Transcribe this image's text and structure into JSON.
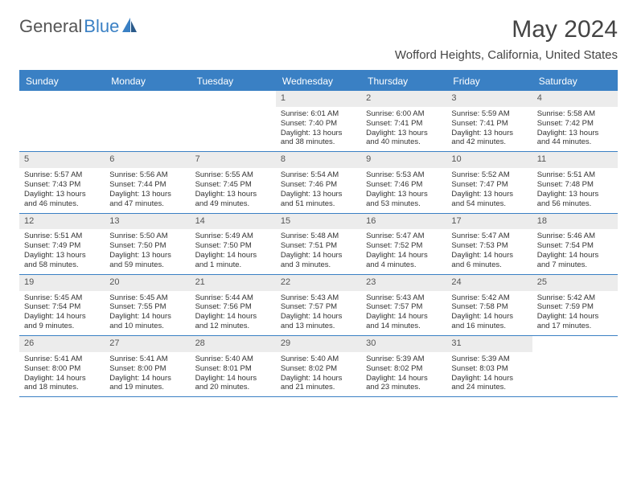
{
  "logo": {
    "text1": "General",
    "text2": "Blue"
  },
  "title": "May 2024",
  "location": "Wofford Heights, California, United States",
  "colors": {
    "accent": "#3a80c4",
    "header_bg": "#ececec",
    "text": "#333333",
    "logo_gray": "#555555"
  },
  "day_names": [
    "Sunday",
    "Monday",
    "Tuesday",
    "Wednesday",
    "Thursday",
    "Friday",
    "Saturday"
  ],
  "weeks": [
    [
      {
        "n": "",
        "sr": "",
        "ss": "",
        "dl": ""
      },
      {
        "n": "",
        "sr": "",
        "ss": "",
        "dl": ""
      },
      {
        "n": "",
        "sr": "",
        "ss": "",
        "dl": ""
      },
      {
        "n": "1",
        "sr": "Sunrise: 6:01 AM",
        "ss": "Sunset: 7:40 PM",
        "dl": "Daylight: 13 hours and 38 minutes."
      },
      {
        "n": "2",
        "sr": "Sunrise: 6:00 AM",
        "ss": "Sunset: 7:41 PM",
        "dl": "Daylight: 13 hours and 40 minutes."
      },
      {
        "n": "3",
        "sr": "Sunrise: 5:59 AM",
        "ss": "Sunset: 7:41 PM",
        "dl": "Daylight: 13 hours and 42 minutes."
      },
      {
        "n": "4",
        "sr": "Sunrise: 5:58 AM",
        "ss": "Sunset: 7:42 PM",
        "dl": "Daylight: 13 hours and 44 minutes."
      }
    ],
    [
      {
        "n": "5",
        "sr": "Sunrise: 5:57 AM",
        "ss": "Sunset: 7:43 PM",
        "dl": "Daylight: 13 hours and 46 minutes."
      },
      {
        "n": "6",
        "sr": "Sunrise: 5:56 AM",
        "ss": "Sunset: 7:44 PM",
        "dl": "Daylight: 13 hours and 47 minutes."
      },
      {
        "n": "7",
        "sr": "Sunrise: 5:55 AM",
        "ss": "Sunset: 7:45 PM",
        "dl": "Daylight: 13 hours and 49 minutes."
      },
      {
        "n": "8",
        "sr": "Sunrise: 5:54 AM",
        "ss": "Sunset: 7:46 PM",
        "dl": "Daylight: 13 hours and 51 minutes."
      },
      {
        "n": "9",
        "sr": "Sunrise: 5:53 AM",
        "ss": "Sunset: 7:46 PM",
        "dl": "Daylight: 13 hours and 53 minutes."
      },
      {
        "n": "10",
        "sr": "Sunrise: 5:52 AM",
        "ss": "Sunset: 7:47 PM",
        "dl": "Daylight: 13 hours and 54 minutes."
      },
      {
        "n": "11",
        "sr": "Sunrise: 5:51 AM",
        "ss": "Sunset: 7:48 PM",
        "dl": "Daylight: 13 hours and 56 minutes."
      }
    ],
    [
      {
        "n": "12",
        "sr": "Sunrise: 5:51 AM",
        "ss": "Sunset: 7:49 PM",
        "dl": "Daylight: 13 hours and 58 minutes."
      },
      {
        "n": "13",
        "sr": "Sunrise: 5:50 AM",
        "ss": "Sunset: 7:50 PM",
        "dl": "Daylight: 13 hours and 59 minutes."
      },
      {
        "n": "14",
        "sr": "Sunrise: 5:49 AM",
        "ss": "Sunset: 7:50 PM",
        "dl": "Daylight: 14 hours and 1 minute."
      },
      {
        "n": "15",
        "sr": "Sunrise: 5:48 AM",
        "ss": "Sunset: 7:51 PM",
        "dl": "Daylight: 14 hours and 3 minutes."
      },
      {
        "n": "16",
        "sr": "Sunrise: 5:47 AM",
        "ss": "Sunset: 7:52 PM",
        "dl": "Daylight: 14 hours and 4 minutes."
      },
      {
        "n": "17",
        "sr": "Sunrise: 5:47 AM",
        "ss": "Sunset: 7:53 PM",
        "dl": "Daylight: 14 hours and 6 minutes."
      },
      {
        "n": "18",
        "sr": "Sunrise: 5:46 AM",
        "ss": "Sunset: 7:54 PM",
        "dl": "Daylight: 14 hours and 7 minutes."
      }
    ],
    [
      {
        "n": "19",
        "sr": "Sunrise: 5:45 AM",
        "ss": "Sunset: 7:54 PM",
        "dl": "Daylight: 14 hours and 9 minutes."
      },
      {
        "n": "20",
        "sr": "Sunrise: 5:45 AM",
        "ss": "Sunset: 7:55 PM",
        "dl": "Daylight: 14 hours and 10 minutes."
      },
      {
        "n": "21",
        "sr": "Sunrise: 5:44 AM",
        "ss": "Sunset: 7:56 PM",
        "dl": "Daylight: 14 hours and 12 minutes."
      },
      {
        "n": "22",
        "sr": "Sunrise: 5:43 AM",
        "ss": "Sunset: 7:57 PM",
        "dl": "Daylight: 14 hours and 13 minutes."
      },
      {
        "n": "23",
        "sr": "Sunrise: 5:43 AM",
        "ss": "Sunset: 7:57 PM",
        "dl": "Daylight: 14 hours and 14 minutes."
      },
      {
        "n": "24",
        "sr": "Sunrise: 5:42 AM",
        "ss": "Sunset: 7:58 PM",
        "dl": "Daylight: 14 hours and 16 minutes."
      },
      {
        "n": "25",
        "sr": "Sunrise: 5:42 AM",
        "ss": "Sunset: 7:59 PM",
        "dl": "Daylight: 14 hours and 17 minutes."
      }
    ],
    [
      {
        "n": "26",
        "sr": "Sunrise: 5:41 AM",
        "ss": "Sunset: 8:00 PM",
        "dl": "Daylight: 14 hours and 18 minutes."
      },
      {
        "n": "27",
        "sr": "Sunrise: 5:41 AM",
        "ss": "Sunset: 8:00 PM",
        "dl": "Daylight: 14 hours and 19 minutes."
      },
      {
        "n": "28",
        "sr": "Sunrise: 5:40 AM",
        "ss": "Sunset: 8:01 PM",
        "dl": "Daylight: 14 hours and 20 minutes."
      },
      {
        "n": "29",
        "sr": "Sunrise: 5:40 AM",
        "ss": "Sunset: 8:02 PM",
        "dl": "Daylight: 14 hours and 21 minutes."
      },
      {
        "n": "30",
        "sr": "Sunrise: 5:39 AM",
        "ss": "Sunset: 8:02 PM",
        "dl": "Daylight: 14 hours and 23 minutes."
      },
      {
        "n": "31",
        "sr": "Sunrise: 5:39 AM",
        "ss": "Sunset: 8:03 PM",
        "dl": "Daylight: 14 hours and 24 minutes."
      },
      {
        "n": "",
        "sr": "",
        "ss": "",
        "dl": ""
      }
    ]
  ]
}
